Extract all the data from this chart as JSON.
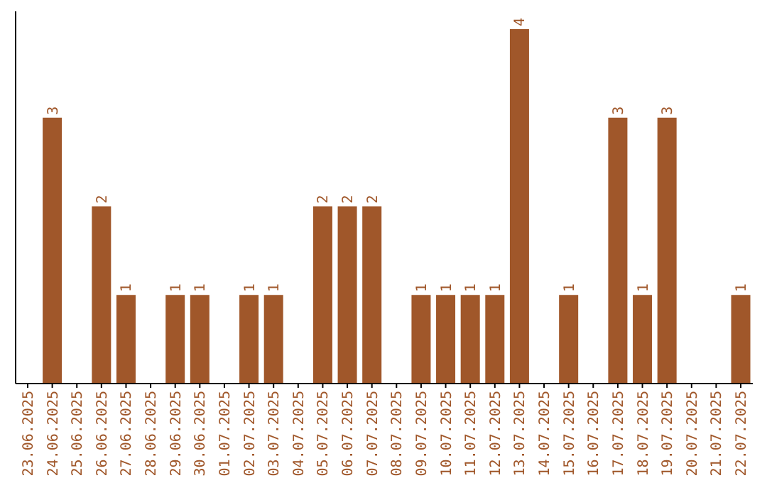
{
  "chart_data": {
    "type": "bar",
    "categories": [
      "23.06.2025",
      "24.06.2025",
      "25.06.2025",
      "26.06.2025",
      "27.06.2025",
      "28.06.2025",
      "29.06.2025",
      "30.06.2025",
      "01.07.2025",
      "02.07.2025",
      "03.07.2025",
      "04.07.2025",
      "05.07.2025",
      "06.07.2025",
      "07.07.2025",
      "08.07.2025",
      "09.07.2025",
      "10.07.2025",
      "11.07.2025",
      "12.07.2025",
      "13.07.2025",
      "14.07.2025",
      "15.07.2025",
      "16.07.2025",
      "17.07.2025",
      "18.07.2025",
      "19.07.2025",
      "20.07.2025",
      "21.07.2025",
      "22.07.2025"
    ],
    "values": [
      0,
      3,
      0,
      2,
      1,
      0,
      1,
      1,
      0,
      1,
      1,
      0,
      2,
      2,
      2,
      0,
      1,
      1,
      1,
      1,
      4,
      0,
      1,
      0,
      3,
      1,
      3,
      0,
      0,
      1
    ],
    "value_labels": [
      null,
      "3",
      null,
      "2",
      "1",
      null,
      "1",
      "1",
      null,
      "1",
      "1",
      null,
      "2",
      "2",
      "2",
      null,
      "1",
      "1",
      "1",
      "1",
      "4",
      null,
      "1",
      null,
      "3",
      "1",
      "3",
      null,
      null,
      "1"
    ],
    "color": "#a0572a",
    "tick_labels": "x"
  }
}
